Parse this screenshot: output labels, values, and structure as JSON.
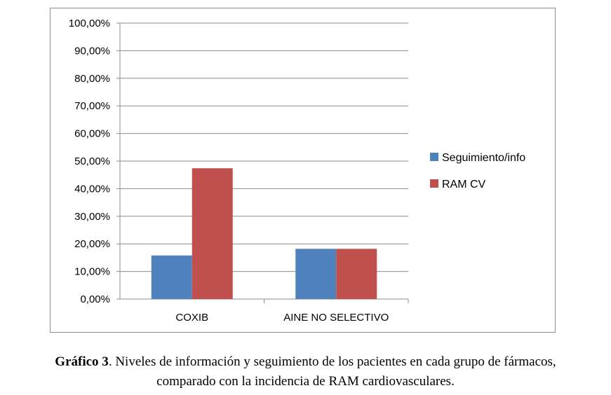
{
  "chart_data": {
    "type": "bar",
    "categories": [
      "COXIB",
      "AINE NO SELECTIVO"
    ],
    "series": [
      {
        "name": "Seguimiento/info",
        "color": "#4f81bd",
        "values": [
          15.8,
          18.2
        ]
      },
      {
        "name": "RAM CV",
        "color": "#c0504d",
        "values": [
          47.4,
          18.2
        ]
      }
    ],
    "ylim": [
      0,
      100
    ],
    "yticks": [
      "0,00%",
      "10,00%",
      "20,00%",
      "30,00%",
      "40,00%",
      "50,00%",
      "60,00%",
      "70,00%",
      "80,00%",
      "90,00%",
      "100,00%"
    ],
    "grid": true,
    "legend_position": "right"
  },
  "caption": {
    "label": "Gráfico 3",
    "text": ". Niveles de información y seguimiento de los pacientes en cada grupo de fármacos,",
    "line2": "comparado con la incidencia de RAM cardiovasculares."
  }
}
